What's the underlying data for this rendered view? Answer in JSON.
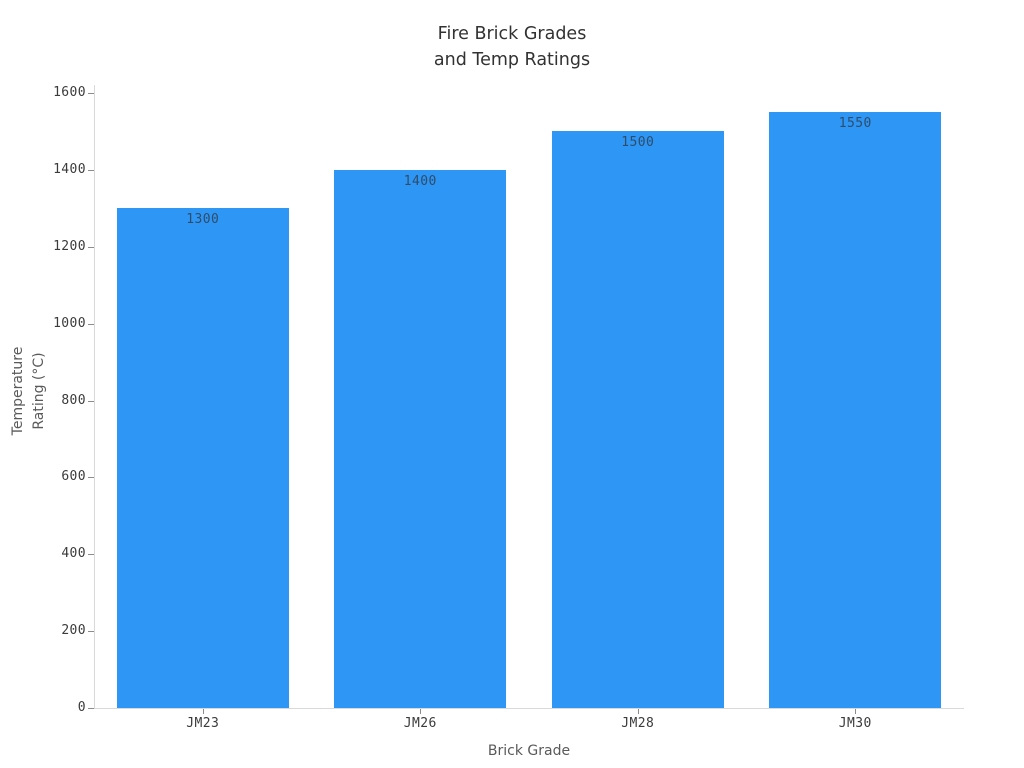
{
  "chart_data": {
    "type": "bar",
    "title": "Fire Brick Grades and Temp Ratings",
    "title_lines": [
      "Fire Brick Grades",
      "and Temp Ratings"
    ],
    "categories": [
      "JM23",
      "JM26",
      "JM28",
      "JM30"
    ],
    "values": [
      1300,
      1400,
      1500,
      1550
    ],
    "bar_labels": [
      "1300",
      "1400",
      "1500",
      "1550"
    ],
    "bar_label_position": "inside-top",
    "xlabel": "Brick Grade",
    "ylabel": "Temperature Rating (°C)",
    "ylabel_lines": [
      "Temperature",
      "Rating (°C)"
    ],
    "ylim": [
      0,
      1600
    ],
    "yticks": [
      0,
      200,
      400,
      600,
      800,
      1000,
      1200,
      1400,
      1600
    ],
    "grid": false,
    "legend": false,
    "colors": {
      "bar": "#2e96f5",
      "bar_label": "#2e4d6b",
      "title": "#323232",
      "tick_label": "#3b3b3b",
      "axis_title": "#5a5a5a",
      "axis_line": "#d9d9d9",
      "tick_mark": "#8c8c8c",
      "background": "#ffffff"
    }
  }
}
